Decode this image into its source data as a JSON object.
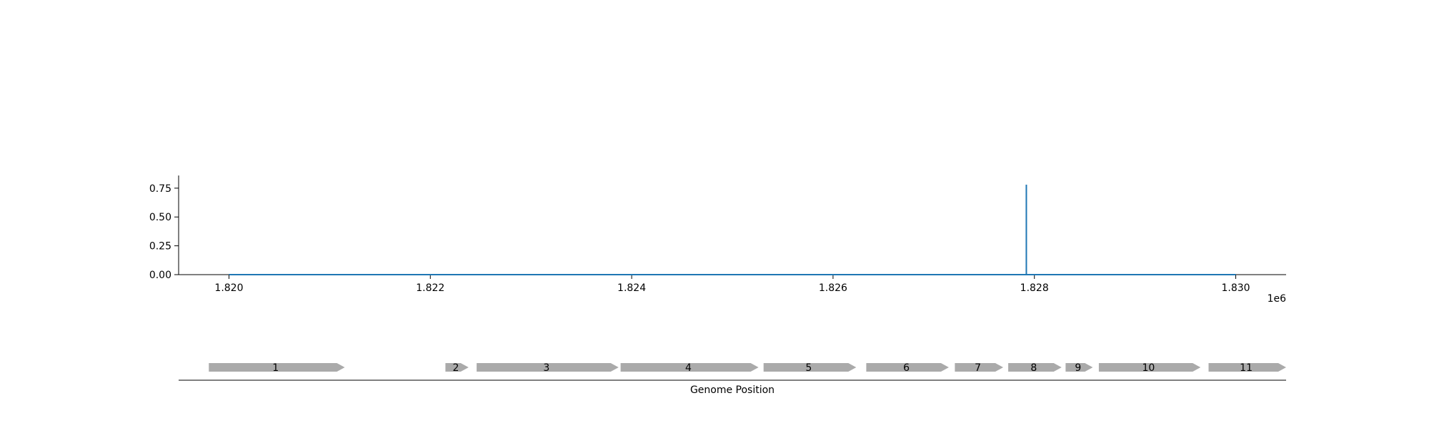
{
  "chart_data": [
    {
      "type": "line",
      "title": "",
      "xlabel": "",
      "ylabel": "",
      "x_offset_label": "1e6",
      "xlim": [
        1819500,
        1830500
      ],
      "ylim": [
        0,
        0.86
      ],
      "x_ticks": [
        1820000,
        1822000,
        1824000,
        1826000,
        1828000,
        1830000
      ],
      "x_tick_labels": [
        "1.820",
        "1.822",
        "1.824",
        "1.826",
        "1.828",
        "1.830"
      ],
      "y_ticks": [
        0.0,
        0.25,
        0.5,
        0.75
      ],
      "y_tick_labels": [
        "0.00",
        "0.25",
        "0.50",
        "0.75"
      ],
      "grid": false,
      "series": [
        {
          "color": "#1f77b4",
          "x": [
            1820000,
            1827920,
            1827920,
            1827920,
            1830000
          ],
          "y": [
            0.0,
            0.0,
            0.78,
            0.0,
            0.0
          ]
        }
      ]
    },
    {
      "type": "gene-track",
      "xlabel": "Genome Position",
      "xlim": [
        1819500,
        1830500
      ],
      "color": "#aaaaaa",
      "genes": [
        {
          "label": "1",
          "start": 1819800,
          "end": 1821150
        },
        {
          "label": "2",
          "start": 1822150,
          "end": 1822380
        },
        {
          "label": "3",
          "start": 1822460,
          "end": 1823870
        },
        {
          "label": "4",
          "start": 1823890,
          "end": 1825260
        },
        {
          "label": "5",
          "start": 1825310,
          "end": 1826230
        },
        {
          "label": "6",
          "start": 1826330,
          "end": 1827150
        },
        {
          "label": "7",
          "start": 1827210,
          "end": 1827690
        },
        {
          "label": "8",
          "start": 1827740,
          "end": 1828270
        },
        {
          "label": "9",
          "start": 1828310,
          "end": 1828580
        },
        {
          "label": "10",
          "start": 1828640,
          "end": 1829650
        },
        {
          "label": "11",
          "start": 1829730,
          "end": 1830500
        }
      ]
    }
  ]
}
